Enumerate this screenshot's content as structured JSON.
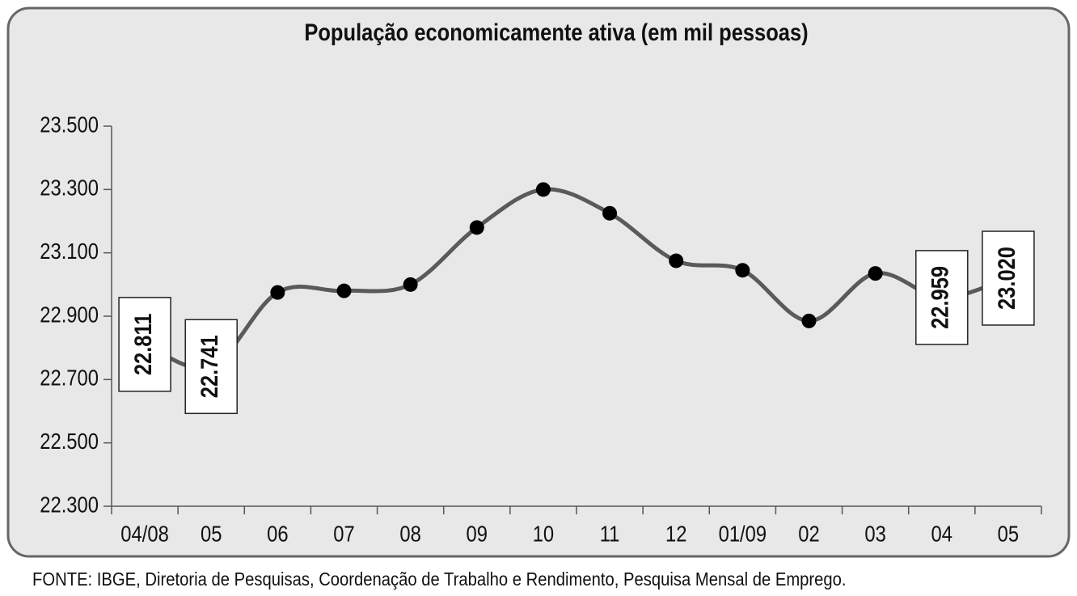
{
  "chart_data": {
    "type": "line",
    "title": "População economicamente ativa (em mil pessoas)",
    "categories": [
      "04/08",
      "05",
      "06",
      "07",
      "08",
      "09",
      "10",
      "11",
      "12",
      "01/09",
      "02",
      "03",
      "04",
      "05"
    ],
    "values": [
      22811,
      22741,
      22975,
      22980,
      23000,
      23180,
      23300,
      23225,
      23075,
      23045,
      22885,
      23035,
      22959,
      23020
    ],
    "value_labels": [
      "22.811",
      "22.741",
      null,
      null,
      null,
      null,
      null,
      null,
      null,
      null,
      null,
      null,
      "22.959",
      "23.020"
    ],
    "color": "#5a5a5a",
    "ylim": [
      22300,
      23500
    ],
    "yticks": [
      {
        "value": 22300,
        "label": "22.300"
      },
      {
        "value": 22500,
        "label": "22.500"
      },
      {
        "value": 22700,
        "label": "22.700"
      },
      {
        "value": 22900,
        "label": "22.900"
      },
      {
        "value": 23100,
        "label": "23.100"
      },
      {
        "value": 23300,
        "label": "23.300"
      },
      {
        "value": 23500,
        "label": "23.500"
      }
    ],
    "grid": false,
    "source": "FONTE: IBGE, Diretoria de Pesquisas, Coordenação de Trabalho e Rendimento, Pesquisa Mensal de Emprego."
  }
}
